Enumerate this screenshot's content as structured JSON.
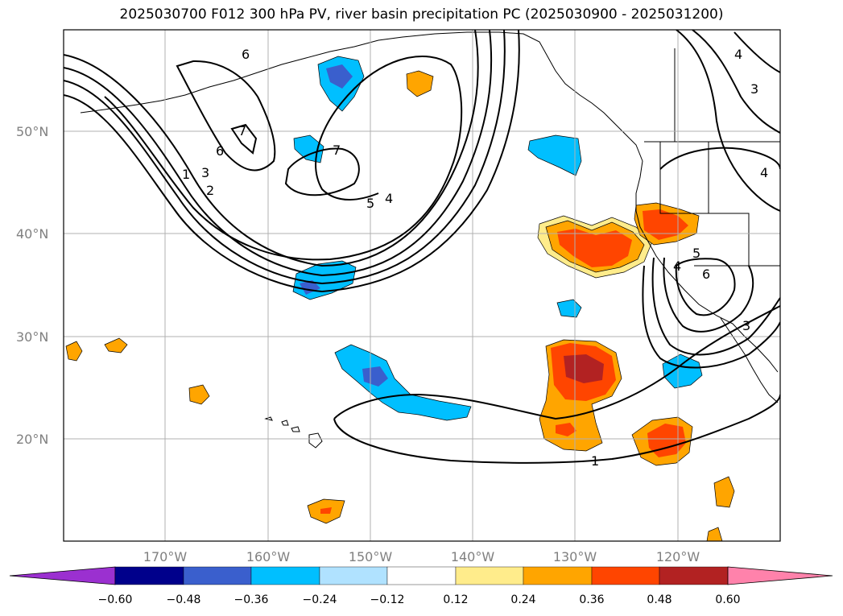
{
  "title": "2025030700 F012 300 hPa PV, river basin precipitation PC (2025030900 - 2025031200)",
  "map": {
    "lat_labels": [
      {
        "id": "lat-50",
        "text": "50°N",
        "lat": 50
      },
      {
        "id": "lat-40",
        "text": "40°N",
        "lat": 40
      },
      {
        "id": "lat-30",
        "text": "30°N",
        "lat": 30
      },
      {
        "id": "lat-20",
        "text": "20°N",
        "lat": 20
      }
    ],
    "lon_labels": [
      {
        "id": "lon-170",
        "text": "170°W",
        "lon": -170
      },
      {
        "id": "lon-160",
        "text": "160°W",
        "lon": -160
      },
      {
        "id": "lon-150",
        "text": "150°W",
        "lon": -150
      },
      {
        "id": "lon-140",
        "text": "140°W",
        "lon": -140
      },
      {
        "id": "lon-130",
        "text": "130°W",
        "lon": -130
      },
      {
        "id": "lon-120",
        "text": "120°W",
        "lon": -120
      }
    ],
    "contour_labels": [
      "6",
      "7",
      "6",
      "1",
      "3",
      "2",
      "7",
      "5",
      "4",
      "4",
      "3",
      "4",
      "5",
      "4",
      "6",
      "3",
      "1"
    ]
  },
  "colorbar": {
    "colors": [
      "#9b30d0",
      "#00008b",
      "#3a5fcd",
      "#00bfff",
      "#b0e2ff",
      "#ffffff",
      "#ffec8b",
      "#ffa500",
      "#ff4500",
      "#b22222",
      "#ff82ab"
    ],
    "tick_labels": [
      "−0.60",
      "−0.48",
      "−0.36",
      "−0.24",
      "−0.12",
      "0.12",
      "0.24",
      "0.36",
      "0.48",
      "0.60"
    ]
  }
}
